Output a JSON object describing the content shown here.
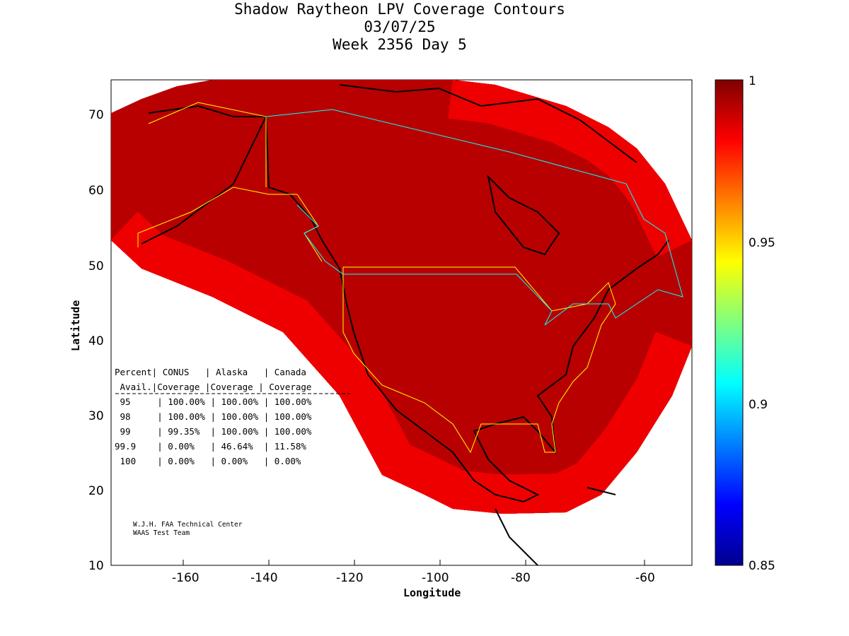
{
  "chart_data": {
    "type": "heatmap",
    "title": [
      "Shadow Raytheon LPV Coverage Contours",
      "03/07/25",
      "Week 2356 Day 5"
    ],
    "xlabel": "Longitude",
    "ylabel": "Latitude",
    "xlim": [
      -177,
      -49
    ],
    "ylim": [
      10,
      75
    ],
    "xticks": [
      "-160",
      "-140",
      "-120",
      "-100",
      "-80",
      "-60"
    ],
    "yticks": [
      "10",
      "20",
      "30",
      "40",
      "50",
      "60",
      "70"
    ],
    "colorbar": {
      "range": [
        0.85,
        1
      ],
      "ticks": [
        "0.85",
        "0.9",
        "0.95",
        "1"
      ],
      "colormap": "jet"
    },
    "description_values": {
      "coverage_core": 1.0,
      "coverage_edge": 0.85
    },
    "table": {
      "header1": "Percent| CONUS   | Alaska   | Canada",
      "header2": " Avail.|Coverage |Coverage | Coverage",
      "rows": [
        {
          "avail": "95",
          "conus": "100.00%",
          "alaska": "100.00%",
          "canada": "100.00%"
        },
        {
          "avail": "98",
          "conus": "100.00%",
          "alaska": "100.00%",
          "canada": "100.00%"
        },
        {
          "avail": "99",
          "conus": "99.35%",
          "alaska": "100.00%",
          "canada": "100.00%"
        },
        {
          "avail": "99.9",
          "conus": "0.00%",
          "alaska": "46.64%",
          "canada": "11.58%"
        },
        {
          "avail": "100",
          "conus": "0.00%",
          "alaska": "0.00%",
          "canada": "0.00%"
        }
      ]
    },
    "credit": [
      "W.J.H. FAA Technical Center",
      "WAAS Test Team"
    ]
  }
}
